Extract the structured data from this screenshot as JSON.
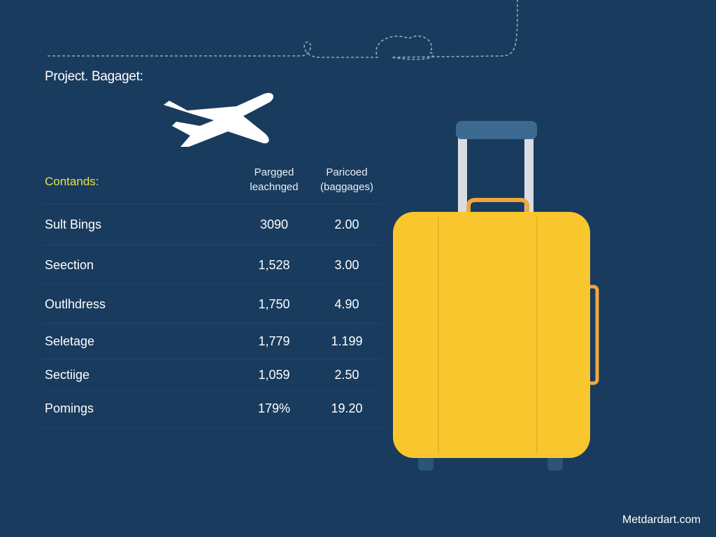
{
  "title": "Project. Bagaget:",
  "table": {
    "header_label": "Contands:",
    "columns": [
      {
        "line1": "Pargged",
        "line2": "leachnged"
      },
      {
        "line1": "Paricoed",
        "line2": "(baggages)"
      }
    ],
    "rows": [
      {
        "label": "Sult Bings",
        "v1": "3090",
        "v2": "2.00"
      },
      {
        "label": "Seection",
        "v1": "1,528",
        "v2": "3.00"
      },
      {
        "label": "Outlhdress",
        "v1": "1,750",
        "v2": "4.90"
      },
      {
        "label": "Seletage",
        "v1": "1,779",
        "v2": "1.199"
      },
      {
        "label": "Sectiige",
        "v1": "1,059",
        "v2": "2.50"
      },
      {
        "label": "Pomings",
        "v1": "179%",
        "v2": "19.20"
      }
    ]
  },
  "footer": "Metdardart.com",
  "icons": [
    "airplane-icon",
    "suitcase-icon",
    "dotted-flight-path"
  ],
  "colors": {
    "background": "#193b5e",
    "accent": "#e8e24c",
    "suitcase": "#f9c62e",
    "handle": "#f0a73a"
  }
}
